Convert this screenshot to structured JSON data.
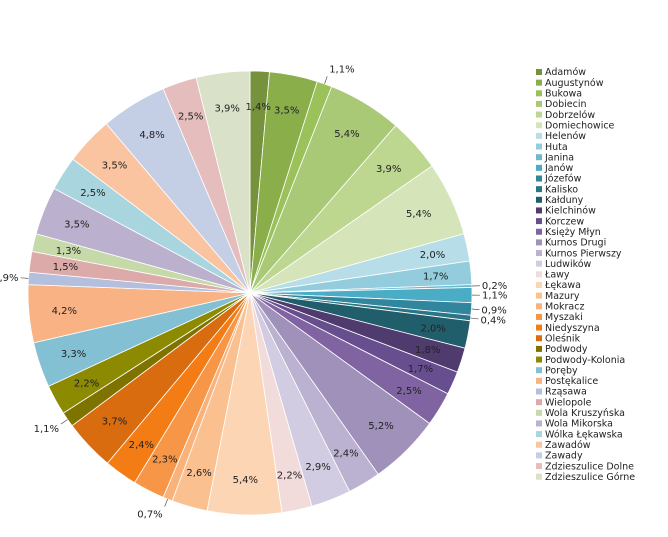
{
  "chart_data": {
    "type": "pie",
    "title": "",
    "legend_position": "right",
    "slices": [
      {
        "name": "Adamów",
        "value": 1.4,
        "label": "1,4%",
        "color": "#76923C"
      },
      {
        "name": "Augustynów",
        "value": 3.5,
        "label": "3,5%",
        "color": "#8AAE4A"
      },
      {
        "name": "Bukowa",
        "value": 1.1,
        "label": "1,1%",
        "color": "#9BC25A"
      },
      {
        "name": "Dobiecin",
        "value": 5.4,
        "label": "5,4%",
        "color": "#A9C977"
      },
      {
        "name": "Dobrzelów",
        "value": 3.9,
        "label": "3,9%",
        "color": "#BDD791"
      },
      {
        "name": "Domiechowice",
        "value": 5.4,
        "label": "5,4%",
        "color": "#D5E5B9"
      },
      {
        "name": "Helenów",
        "value": 2.0,
        "label": "2,0%",
        "color": "#B7DDE8"
      },
      {
        "name": "Huta",
        "value": 1.7,
        "label": "1,7%",
        "color": "#93CDDD"
      },
      {
        "name": "Janina",
        "value": 0.2,
        "label": "0,2%",
        "color": "#6EB8CE"
      },
      {
        "name": "Janów",
        "value": 1.1,
        "label": "1,1%",
        "color": "#4BACC6"
      },
      {
        "name": "Józefów",
        "value": 0.9,
        "label": "0,9%",
        "color": "#31859C"
      },
      {
        "name": "Kalisko",
        "value": 0.4,
        "label": "0,4%",
        "color": "#2A7686"
      },
      {
        "name": "Kałduny",
        "value": 2.0,
        "label": "2,0%",
        "color": "#215E6B"
      },
      {
        "name": "Kielchinów",
        "value": 1.8,
        "label": "1,8%",
        "color": "#4F3B6E"
      },
      {
        "name": "Korczew",
        "value": 1.7,
        "label": "1,7%",
        "color": "#674F8F"
      },
      {
        "name": "Księży Młyn",
        "value": 2.5,
        "label": "2,5%",
        "color": "#8064A2"
      },
      {
        "name": "Kurnos Drugi",
        "value": 5.2,
        "label": "5,2%",
        "color": "#A091BB"
      },
      {
        "name": "Kurnos Pierwszy",
        "value": 2.4,
        "label": "2,4%",
        "color": "#BBB1D1"
      },
      {
        "name": "Ludwików",
        "value": 2.9,
        "label": "2,9%",
        "color": "#D2CCE2"
      },
      {
        "name": "Ławy",
        "value": 2.2,
        "label": "2,2%",
        "color": "#F2DCDB"
      },
      {
        "name": "Łękawa",
        "value": 5.4,
        "label": "5,4%",
        "color": "#FCD5B5"
      },
      {
        "name": "Mazury",
        "value": 2.6,
        "label": "2,6%",
        "color": "#FAC090"
      },
      {
        "name": "Mokracz",
        "value": 0.7,
        "label": "0,7%",
        "color": "#F9B27A"
      },
      {
        "name": "Myszaki",
        "value": 2.3,
        "label": "2,3%",
        "color": "#F79646"
      },
      {
        "name": "Niedyszyna",
        "value": 2.4,
        "label": "2,4%",
        "color": "#F47C14"
      },
      {
        "name": "Oleśnik",
        "value": 3.7,
        "label": "3,7%",
        "color": "#D86C0F"
      },
      {
        "name": "Podwody",
        "value": 1.1,
        "label": "1,1%",
        "color": "#7F7300"
      },
      {
        "name": "Podwody-Kolonia",
        "value": 2.2,
        "label": "2,2%",
        "color": "#8B8A00"
      },
      {
        "name": "Poręby",
        "value": 3.3,
        "label": "3,3%",
        "color": "#84C0D4"
      },
      {
        "name": "Postękalice",
        "value": 4.2,
        "label": "4,2%",
        "color": "#F8B283"
      },
      {
        "name": "Rząsawa",
        "value": 0.9,
        "label": "0,9%",
        "color": "#B4BFDD"
      },
      {
        "name": "Wielopole",
        "value": 1.5,
        "label": "1,5%",
        "color": "#DDAAAA"
      },
      {
        "name": "Wola Kruszyńska",
        "value": 1.3,
        "label": "1,3%",
        "color": "#C6D9A8"
      },
      {
        "name": "Wola Mikorska",
        "value": 3.5,
        "label": "3,5%",
        "color": "#BCB0CF"
      },
      {
        "name": "Wólka Łękawska",
        "value": 2.5,
        "label": "2,5%",
        "color": "#A9D5DF"
      },
      {
        "name": "Zawadów",
        "value": 3.5,
        "label": "3,5%",
        "color": "#FBC4A1"
      },
      {
        "name": "Zawady",
        "value": 4.8,
        "label": "4,8%",
        "color": "#C4CEE5"
      },
      {
        "name": "Zdzieszulice Dolne",
        "value": 2.5,
        "label": "2,5%",
        "color": "#E6BDBD"
      },
      {
        "name": "Zdzieszulice Górne",
        "value": 3.9,
        "label": "3,9%",
        "color": "#D9E2C8"
      }
    ]
  }
}
